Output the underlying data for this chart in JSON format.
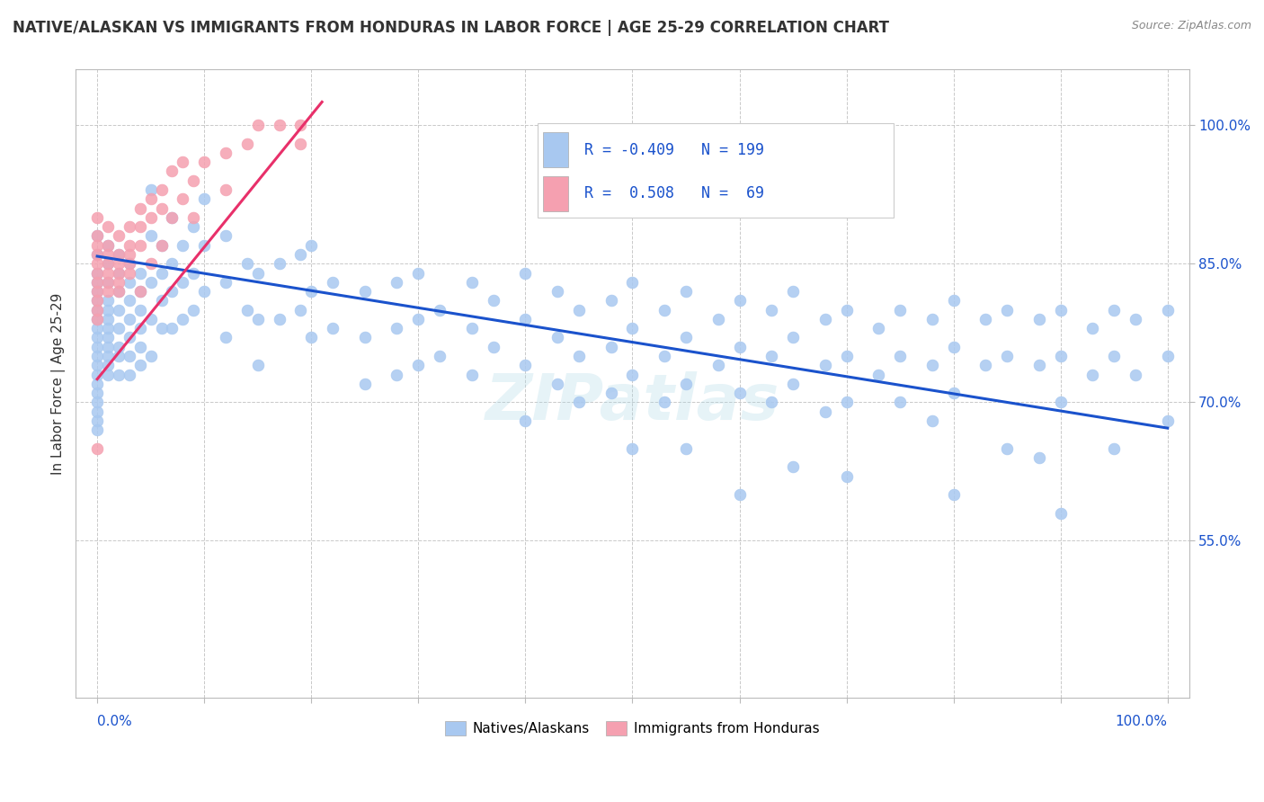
{
  "title": "NATIVE/ALASKAN VS IMMIGRANTS FROM HONDURAS IN LABOR FORCE | AGE 25-29 CORRELATION CHART",
  "source": "Source: ZipAtlas.com",
  "ylabel": "In Labor Force | Age 25-29",
  "yticks": [
    0.55,
    0.7,
    0.85,
    1.0
  ],
  "ytick_labels": [
    "55.0%",
    "70.0%",
    "85.0%",
    "100.0%"
  ],
  "xticks": [
    0.0,
    0.1,
    0.2,
    0.3,
    0.4,
    0.5,
    0.6,
    0.7,
    0.8,
    0.9,
    1.0
  ],
  "xlim": [
    -0.02,
    1.02
  ],
  "ylim": [
    0.38,
    1.06
  ],
  "watermark": "ZIPatlas",
  "legend_blue_label": "Natives/Alaskans",
  "legend_pink_label": "Immigrants from Honduras",
  "blue_r": "-0.409",
  "blue_n": "199",
  "pink_r": "0.508",
  "pink_n": "69",
  "blue_color": "#a8c8f0",
  "pink_color": "#f5a0b0",
  "blue_line_color": "#1a52cc",
  "pink_line_color": "#e8306a",
  "legend_text_color": "#1a52cc",
  "title_color": "#333333",
  "source_color": "#888888",
  "axis_color": "#bbbbbb",
  "background_color": "#ffffff",
  "blue_scatter_x": [
    0.0,
    0.0,
    0.0,
    0.0,
    0.0,
    0.0,
    0.0,
    0.0,
    0.0,
    0.0,
    0.0,
    0.0,
    0.0,
    0.0,
    0.0,
    0.0,
    0.0,
    0.0,
    0.0,
    0.0,
    0.01,
    0.01,
    0.01,
    0.01,
    0.01,
    0.01,
    0.01,
    0.01,
    0.01,
    0.01,
    0.01,
    0.01,
    0.02,
    0.02,
    0.02,
    0.02,
    0.02,
    0.02,
    0.02,
    0.02,
    0.03,
    0.03,
    0.03,
    0.03,
    0.03,
    0.03,
    0.03,
    0.04,
    0.04,
    0.04,
    0.04,
    0.04,
    0.04,
    0.05,
    0.05,
    0.05,
    0.05,
    0.05,
    0.06,
    0.06,
    0.06,
    0.06,
    0.07,
    0.07,
    0.07,
    0.07,
    0.08,
    0.08,
    0.08,
    0.09,
    0.09,
    0.09,
    0.1,
    0.1,
    0.1,
    0.12,
    0.12,
    0.12,
    0.14,
    0.14,
    0.15,
    0.15,
    0.15,
    0.17,
    0.17,
    0.19,
    0.19,
    0.2,
    0.2,
    0.2,
    0.22,
    0.22,
    0.25,
    0.25,
    0.25,
    0.28,
    0.28,
    0.28,
    0.3,
    0.3,
    0.3,
    0.32,
    0.32,
    0.35,
    0.35,
    0.35,
    0.37,
    0.37,
    0.4,
    0.4,
    0.4,
    0.4,
    0.43,
    0.43,
    0.43,
    0.45,
    0.45,
    0.45,
    0.48,
    0.48,
    0.48,
    0.5,
    0.5,
    0.5,
    0.5,
    0.53,
    0.53,
    0.53,
    0.55,
    0.55,
    0.55,
    0.55,
    0.58,
    0.58,
    0.6,
    0.6,
    0.6,
    0.6,
    0.63,
    0.63,
    0.63,
    0.65,
    0.65,
    0.65,
    0.65,
    0.68,
    0.68,
    0.68,
    0.7,
    0.7,
    0.7,
    0.7,
    0.73,
    0.73,
    0.75,
    0.75,
    0.75,
    0.78,
    0.78,
    0.78,
    0.8,
    0.8,
    0.8,
    0.8,
    0.83,
    0.83,
    0.85,
    0.85,
    0.85,
    0.88,
    0.88,
    0.88,
    0.9,
    0.9,
    0.9,
    0.9,
    0.93,
    0.93,
    0.95,
    0.95,
    0.95,
    0.97,
    0.97,
    1.0,
    1.0,
    1.0
  ],
  "blue_scatter_y": [
    0.88,
    0.86,
    0.84,
    0.83,
    0.82,
    0.81,
    0.8,
    0.79,
    0.78,
    0.77,
    0.76,
    0.75,
    0.74,
    0.73,
    0.72,
    0.71,
    0.7,
    0.69,
    0.68,
    0.67,
    0.87,
    0.85,
    0.83,
    0.81,
    0.8,
    0.79,
    0.78,
    0.77,
    0.76,
    0.75,
    0.74,
    0.73,
    0.86,
    0.84,
    0.82,
    0.8,
    0.78,
    0.76,
    0.75,
    0.73,
    0.85,
    0.83,
    0.81,
    0.79,
    0.77,
    0.75,
    0.73,
    0.84,
    0.82,
    0.8,
    0.78,
    0.76,
    0.74,
    0.93,
    0.88,
    0.83,
    0.79,
    0.75,
    0.87,
    0.84,
    0.81,
    0.78,
    0.9,
    0.85,
    0.82,
    0.78,
    0.87,
    0.83,
    0.79,
    0.89,
    0.84,
    0.8,
    0.92,
    0.87,
    0.82,
    0.88,
    0.83,
    0.77,
    0.85,
    0.8,
    0.84,
    0.79,
    0.74,
    0.85,
    0.79,
    0.86,
    0.8,
    0.87,
    0.82,
    0.77,
    0.83,
    0.78,
    0.82,
    0.77,
    0.72,
    0.83,
    0.78,
    0.73,
    0.84,
    0.79,
    0.74,
    0.8,
    0.75,
    0.83,
    0.78,
    0.73,
    0.81,
    0.76,
    0.84,
    0.79,
    0.74,
    0.68,
    0.82,
    0.77,
    0.72,
    0.8,
    0.75,
    0.7,
    0.81,
    0.76,
    0.71,
    0.83,
    0.78,
    0.73,
    0.65,
    0.8,
    0.75,
    0.7,
    0.82,
    0.77,
    0.72,
    0.65,
    0.79,
    0.74,
    0.81,
    0.76,
    0.71,
    0.6,
    0.8,
    0.75,
    0.7,
    0.82,
    0.77,
    0.72,
    0.63,
    0.79,
    0.74,
    0.69,
    0.8,
    0.75,
    0.7,
    0.62,
    0.78,
    0.73,
    0.8,
    0.75,
    0.7,
    0.79,
    0.74,
    0.68,
    0.81,
    0.76,
    0.71,
    0.6,
    0.79,
    0.74,
    0.8,
    0.75,
    0.65,
    0.79,
    0.74,
    0.64,
    0.8,
    0.75,
    0.7,
    0.58,
    0.78,
    0.73,
    0.8,
    0.75,
    0.65,
    0.79,
    0.73,
    0.8,
    0.75,
    0.68
  ],
  "pink_scatter_x": [
    0.0,
    0.0,
    0.0,
    0.0,
    0.0,
    0.0,
    0.0,
    0.0,
    0.0,
    0.0,
    0.0,
    0.0,
    0.01,
    0.01,
    0.01,
    0.01,
    0.01,
    0.01,
    0.01,
    0.02,
    0.02,
    0.02,
    0.02,
    0.02,
    0.02,
    0.03,
    0.03,
    0.03,
    0.03,
    0.03,
    0.04,
    0.04,
    0.04,
    0.04,
    0.05,
    0.05,
    0.05,
    0.06,
    0.06,
    0.06,
    0.07,
    0.07,
    0.08,
    0.08,
    0.09,
    0.09,
    0.1,
    0.12,
    0.12,
    0.14,
    0.15,
    0.17,
    0.19,
    0.19
  ],
  "pink_scatter_y": [
    0.9,
    0.88,
    0.87,
    0.86,
    0.85,
    0.84,
    0.83,
    0.82,
    0.81,
    0.8,
    0.79,
    0.65,
    0.89,
    0.87,
    0.86,
    0.85,
    0.84,
    0.83,
    0.82,
    0.88,
    0.86,
    0.85,
    0.84,
    0.83,
    0.82,
    0.89,
    0.87,
    0.86,
    0.85,
    0.84,
    0.91,
    0.89,
    0.87,
    0.82,
    0.92,
    0.9,
    0.85,
    0.93,
    0.91,
    0.87,
    0.95,
    0.9,
    0.96,
    0.92,
    0.94,
    0.9,
    0.96,
    0.97,
    0.93,
    0.98,
    1.0,
    1.0,
    1.0,
    0.98
  ],
  "blue_trend_x": [
    0.0,
    1.0
  ],
  "blue_trend_y": [
    0.858,
    0.672
  ],
  "pink_trend_x": [
    0.0,
    0.21
  ],
  "pink_trend_y": [
    0.725,
    1.025
  ]
}
